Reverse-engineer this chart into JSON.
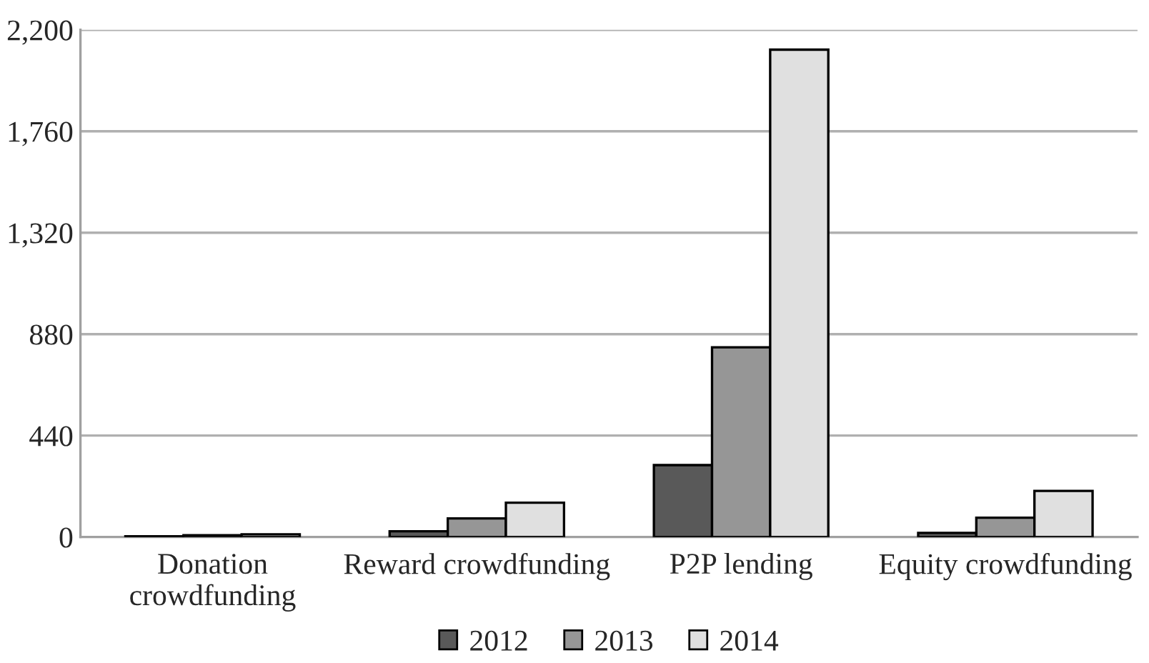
{
  "chart_data": {
    "type": "bar",
    "categories": [
      "Donation\ncrowdfunding",
      "Reward crowdfunding",
      "P2P lending",
      "Equity crowdfunding"
    ],
    "series": [
      {
        "name": "2012",
        "color": "#595959",
        "values": [
          3,
          25,
          312,
          18
        ]
      },
      {
        "name": "2013",
        "color": "#969696",
        "values": [
          8,
          81,
          823,
          84
        ]
      },
      {
        "name": "2014",
        "color": "#e0e0e0",
        "values": [
          12,
          149,
          2114,
          200
        ]
      }
    ],
    "ylim": [
      0,
      2200
    ],
    "yticks": [
      0,
      {
        "value": 440,
        "label": "440"
      },
      {
        "value": 880,
        "label": "880"
      },
      {
        "value": 1320,
        "label": "1,320"
      },
      {
        "value": 1760,
        "label": "1,760"
      },
      {
        "value": 2200,
        "label": "2,200"
      }
    ],
    "grid": "y",
    "legend": "bottom"
  }
}
